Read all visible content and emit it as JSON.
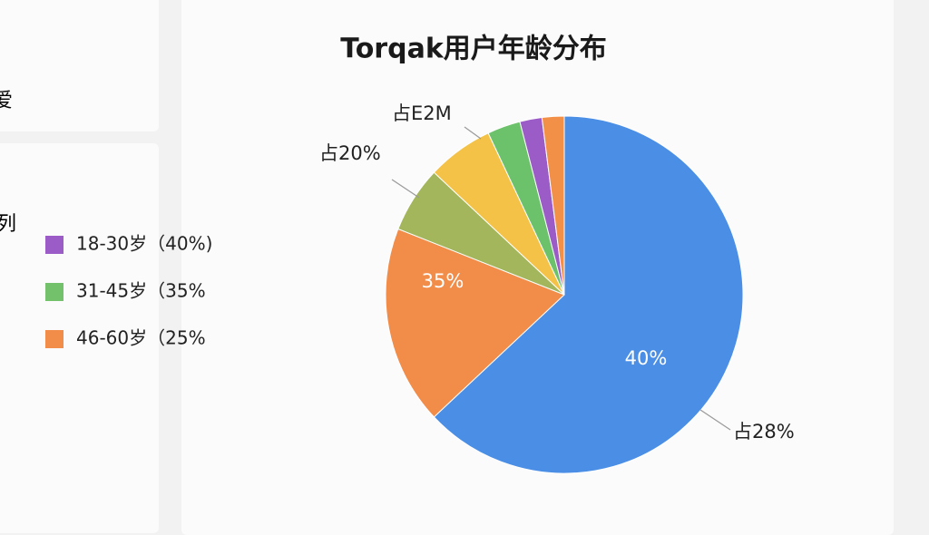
{
  "sidebar": {
    "top_text": "爱",
    "section_text": "列",
    "legend": [
      {
        "label": "18-30岁（40%)",
        "color": "#9b5cc8"
      },
      {
        "label": "31-45岁（35%",
        "color": "#73c16b"
      },
      {
        "label": "46-60岁（25%",
        "color": "#f28c49"
      }
    ]
  },
  "chart_data": {
    "type": "pie",
    "title": "Torqak用户年龄分布",
    "values": [
      63,
      18,
      6,
      6,
      3,
      2,
      2
    ],
    "colors": [
      "#4a8ee6",
      "#f28c49",
      "#a3b65c",
      "#f3c246",
      "#6cc26a",
      "#9b5cc8",
      "#f29048"
    ],
    "annotations": [
      "40%",
      "35%",
      "占28%",
      "占20%",
      "占E2M"
    ]
  }
}
